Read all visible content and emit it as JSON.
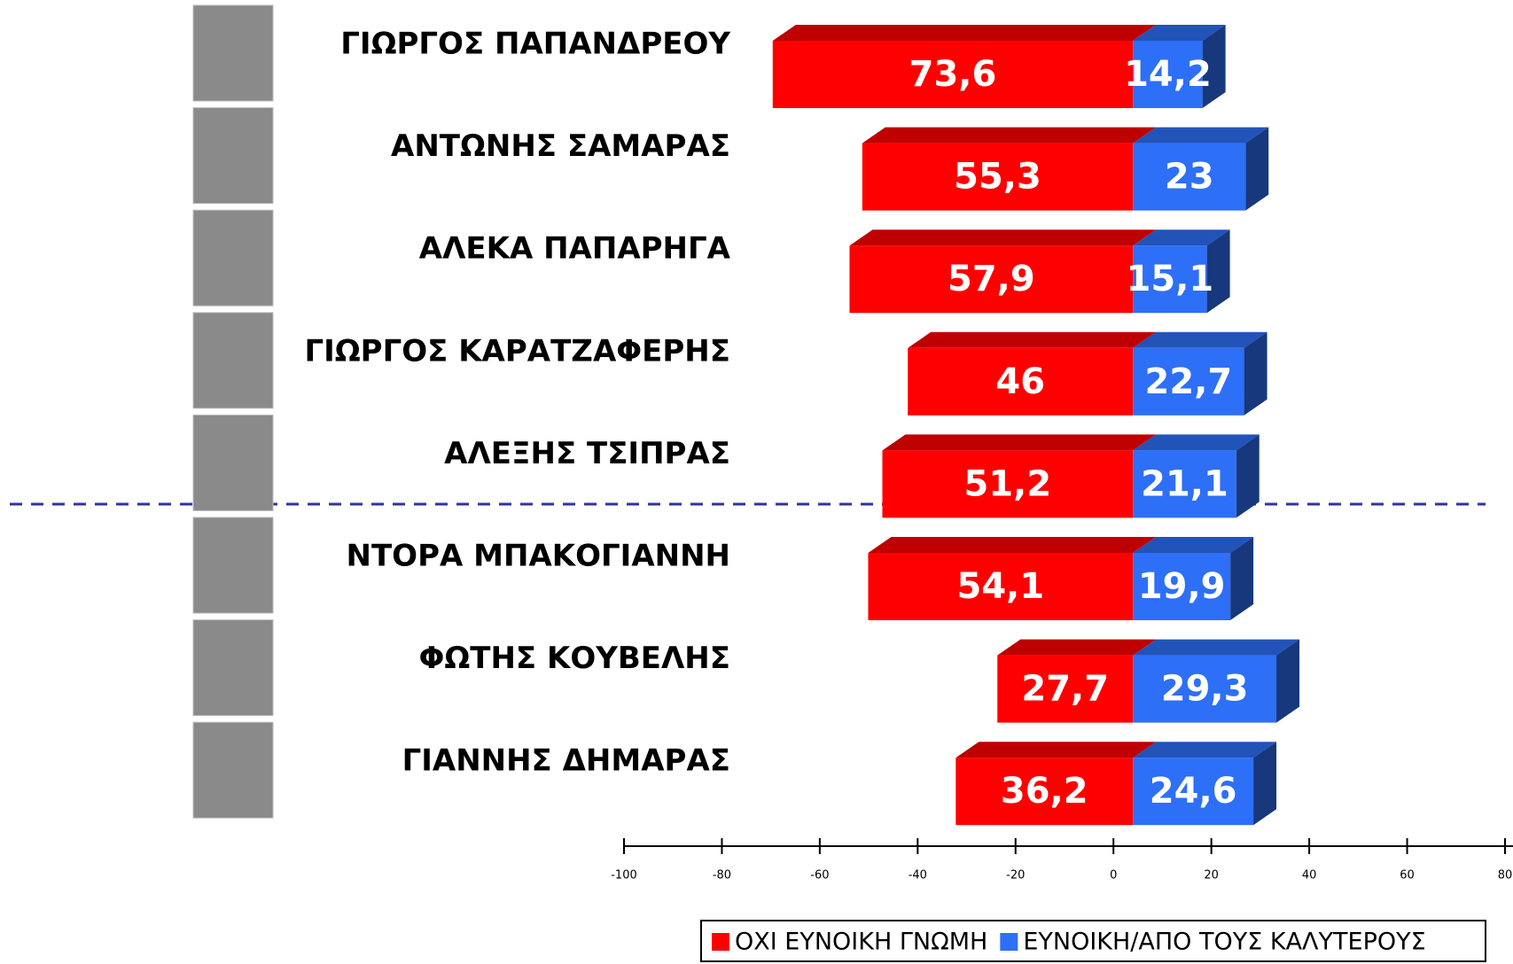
{
  "chart_data": {
    "type": "bar",
    "categories": [
      "ΓΙΩΡΓΟΣ ΠΑΠΑΝΔΡΕΟΥ",
      "ΑΝΤΩΝΗΣ ΣΑΜΑΡΑΣ",
      "ΑΛΕΚΑ ΠΑΠΑΡΗΓΑ",
      "ΓΙΩΡΓΟΣ ΚΑΡΑΤΖΑΦΕΡΗΣ",
      "ΑΛΕΞΗΣ ΤΣΙΠΡΑΣ",
      "ΝΤΟΡΑ ΜΠΑΚΟΓΙΑΝΝΗ",
      "ΦΩΤΗΣ ΚΟΥΒΕΛΗΣ",
      "ΓΙΑΝΝΗΣ ΔΗΜΑΡΑΣ"
    ],
    "series": [
      {
        "name": "ΟΧΙ ΕΥΝΟΙΚΗ ΓΝΩΜΗ",
        "color": "#ff0000",
        "values": [
          -73.6,
          -55.3,
          -57.9,
          -46,
          -51.2,
          -54.1,
          -27.7,
          -36.2
        ],
        "value_labels": [
          "73,6",
          "55,3",
          "57,9",
          "46",
          "51,2",
          "54,1",
          "27,7",
          "36,2"
        ]
      },
      {
        "name": "ΕΥΝΟΙΚΗ/ΑΠΟ ΤΟΥΣ ΚΑΛΥΤΕΡΟΥΣ",
        "color": "#2d6ff7",
        "values": [
          14.2,
          23,
          15.1,
          22.7,
          21.1,
          19.9,
          29.3,
          24.6
        ],
        "value_labels": [
          "14,2",
          "23",
          "15,1",
          "22,7",
          "21,1",
          "19,9",
          "29,3",
          "24,6"
        ]
      }
    ],
    "xlim": [
      -100,
      80
    ],
    "xticks": [
      -100,
      -80,
      -60,
      -40,
      -20,
      0,
      20,
      40,
      60,
      80
    ],
    "legend": "bottom-right"
  }
}
